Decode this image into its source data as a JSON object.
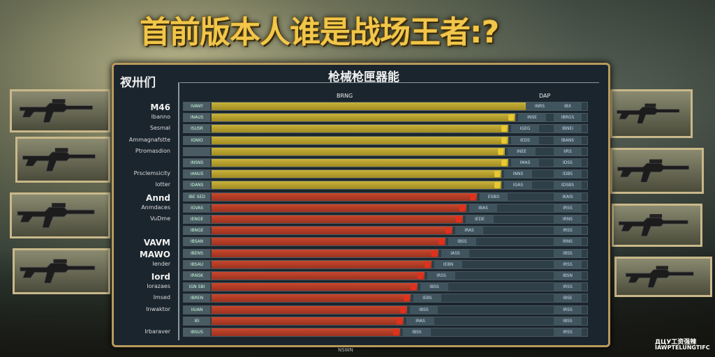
{
  "title": "首前版本人谁是战场王者:?",
  "panel": {
    "title": "枪械枪匣器能",
    "header": "衩卅们",
    "column_label_1": "BRNG",
    "column_label_2": "DAP",
    "footer": "NSWN"
  },
  "watermark": {
    "line1": "ДЦУ工资强辣",
    "line2": "IAWPTELUNGTIFC"
  },
  "colors": {
    "yellow": "#c9b33a",
    "red": "#c8472c",
    "gold": "#f1c64a",
    "panel": "#1b252d"
  },
  "labels": [
    "M46",
    "Ibanno",
    "Sesmal",
    "Ammagnafstte",
    "Ptromasdion",
    "",
    "Prsclemsicity",
    "lotter",
    "Annd",
    "Anmdaces",
    "VuDme",
    "",
    "VAVM",
    "MAWO",
    "Iender",
    "Iord",
    "Iorazaes",
    "Imsed",
    "Inwaktor",
    "",
    "Irbaraver"
  ],
  "rows": [
    {
      "cell": "IVANY",
      "color": "yellow",
      "value": 0.92,
      "stat1": "INRS",
      "stat2": "IBX"
    },
    {
      "cell": "INAUS",
      "color": "yellow",
      "value": 0.87,
      "stat1": "INSE",
      "stat2": "IBRGS"
    },
    {
      "cell": "ISUSR",
      "color": "yellow",
      "value": 0.85,
      "stat1": "IGEG",
      "stat2": "IBNEI"
    },
    {
      "cell": "IGNIO",
      "color": "yellow",
      "value": 0.85,
      "stat1": "IEDS",
      "stat2": "IBANS"
    },
    {
      "cell": "",
      "color": "yellow",
      "value": 0.84,
      "stat1": "INEE",
      "stat2": "IIRS"
    },
    {
      "cell": "INSNS",
      "color": "yellow",
      "value": 0.85,
      "stat1": "IMAS",
      "stat2": "IDSS"
    },
    {
      "cell": "IANUS",
      "color": "yellow",
      "value": 0.83,
      "stat1": "INNS",
      "stat2": "IDBS"
    },
    {
      "cell": "IDANS",
      "color": "yellow",
      "value": 0.83,
      "stat1": "IGAS",
      "stat2": "IDSBS"
    },
    {
      "cell": "IBE SED",
      "color": "red",
      "value": 0.76,
      "stat1": "ESBO",
      "stat2": "IKAIS"
    },
    {
      "cell": "IGVAS",
      "color": "red",
      "value": 0.73,
      "stat1": "IBAS",
      "stat2": "IRSS"
    },
    {
      "cell": "IENGE",
      "color": "red",
      "value": 0.72,
      "stat1": "IEDE",
      "stat2": "IRNS"
    },
    {
      "cell": "IBNGE",
      "color": "red",
      "value": 0.69,
      "stat1": "IRAS",
      "stat2": "IRSS"
    },
    {
      "cell": "IBSAN",
      "color": "red",
      "value": 0.67,
      "stat1": "IBSS",
      "stat2": "IRNS"
    },
    {
      "cell": "IBENS",
      "color": "red",
      "value": 0.65,
      "stat1": "IASS",
      "stat2": "IBSS"
    },
    {
      "cell": "IBSAU",
      "color": "red",
      "value": 0.63,
      "stat1": "IEBN",
      "stat2": "IRSS"
    },
    {
      "cell": "IRNSK",
      "color": "red",
      "value": 0.61,
      "stat1": "IRSS",
      "stat2": "IBSN"
    },
    {
      "cell": "IGN SBI",
      "color": "red",
      "value": 0.59,
      "stat1": "IBSS",
      "stat2": "IRSS"
    },
    {
      "cell": "IBREN",
      "color": "red",
      "value": 0.57,
      "stat1": "IEBS",
      "stat2": "IBSE"
    },
    {
      "cell": "IIUAN",
      "color": "red",
      "value": 0.56,
      "stat1": "IBSS",
      "stat2": "IRSS"
    },
    {
      "cell": "IEI",
      "color": "red",
      "value": 0.55,
      "stat1": "IRAS",
      "stat2": "IBSS"
    },
    {
      "cell": "IBSUS",
      "color": "red",
      "value": 0.54,
      "stat1": "IBSS",
      "stat2": "IRSS"
    }
  ]
}
